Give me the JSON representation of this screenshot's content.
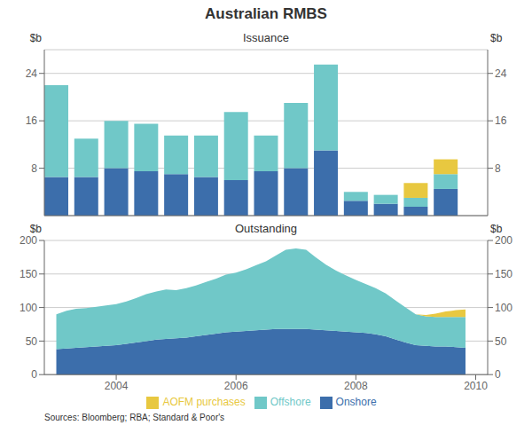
{
  "chart_data": [
    {
      "type": "bar",
      "title": "Australian RMBS",
      "subtitle": "Issuance",
      "stacked": true,
      "grid": true,
      "tick_labels": "y",
      "ylabel": "$b",
      "y2label": "$b",
      "x": [
        2003.0,
        2003.5,
        2004.0,
        2004.5,
        2005.0,
        2005.5,
        2006.0,
        2006.5,
        2007.0,
        2007.5,
        2008.0,
        2008.5,
        2009.0,
        2009.5
      ],
      "series": [
        {
          "name": "Onshore",
          "color": "#3C6EAB",
          "values": [
            6.5,
            6.5,
            8.0,
            7.5,
            7.0,
            6.5,
            6.0,
            7.5,
            8.0,
            11.0,
            2.5,
            2.0,
            1.5,
            4.5
          ]
        },
        {
          "name": "Offshore",
          "color": "#70C8C8",
          "values": [
            15.5,
            6.5,
            8.0,
            8.0,
            6.5,
            7.0,
            11.5,
            6.0,
            11.0,
            14.5,
            1.5,
            1.5,
            1.5,
            2.5
          ]
        },
        {
          "name": "AOFM purchases",
          "color": "#E8C840",
          "values": [
            0,
            0,
            0,
            0,
            0,
            0,
            0,
            0,
            0,
            0,
            0,
            0,
            2.5,
            2.5
          ]
        }
      ],
      "xlim": [
        2002.8,
        2010.2
      ],
      "ylim": [
        0,
        28
      ],
      "yticks": [
        8,
        16,
        24
      ],
      "y2lim": [
        0,
        28
      ],
      "y2ticks": [
        8,
        16,
        24
      ]
    },
    {
      "type": "area",
      "subtitle": "Outstanding",
      "stacked": true,
      "grid": true,
      "legend": "bottom",
      "ylabel": "$b",
      "y2label": "$b",
      "annotations": [
        "Sources: Bloomberg; RBA; Standard & Poor's"
      ],
      "x": [
        2003.0,
        2003.17,
        2003.33,
        2003.5,
        2003.67,
        2003.83,
        2004.0,
        2004.17,
        2004.33,
        2004.5,
        2004.67,
        2004.83,
        2005.0,
        2005.17,
        2005.33,
        2005.5,
        2005.67,
        2005.83,
        2006.0,
        2006.17,
        2006.33,
        2006.5,
        2006.67,
        2006.83,
        2007.0,
        2007.17,
        2007.33,
        2007.5,
        2007.67,
        2007.83,
        2008.0,
        2008.17,
        2008.33,
        2008.5,
        2008.67,
        2008.83,
        2009.0,
        2009.17,
        2009.33,
        2009.5,
        2009.67,
        2009.83
      ],
      "series": [
        {
          "name": "Onshore",
          "color": "#3C6EAB",
          "values": [
            38,
            39,
            40,
            41,
            42,
            43,
            44,
            46,
            48,
            50,
            52,
            53,
            54,
            55,
            57,
            59,
            61,
            63,
            64,
            65,
            66,
            67,
            68,
            68,
            68,
            68,
            67,
            66,
            65,
            64,
            63,
            62,
            60,
            57,
            52,
            48,
            44,
            43,
            42,
            42,
            41,
            40
          ]
        },
        {
          "name": "Offshore",
          "color": "#70C8C8",
          "values": [
            52,
            56,
            58,
            58,
            59,
            60,
            61,
            63,
            66,
            70,
            72,
            74,
            72,
            74,
            76,
            79,
            82,
            86,
            88,
            92,
            97,
            102,
            110,
            118,
            120,
            118,
            108,
            98,
            90,
            84,
            78,
            73,
            69,
            64,
            58,
            52,
            46,
            44,
            44,
            44,
            45,
            46
          ]
        },
        {
          "name": "AOFM purchases",
          "color": "#E8C840",
          "values": [
            0,
            0,
            0,
            0,
            0,
            0,
            0,
            0,
            0,
            0,
            0,
            0,
            0,
            0,
            0,
            0,
            0,
            0,
            0,
            0,
            0,
            0,
            0,
            0,
            0,
            0,
            0,
            0,
            0,
            0,
            0,
            0,
            0,
            0,
            0,
            0,
            0,
            2,
            5,
            8,
            10,
            11
          ]
        }
      ],
      "xlim": [
        2002.8,
        2010.2
      ],
      "xticks": [
        2004,
        2006,
        2008,
        2010
      ],
      "ylim": [
        0,
        200
      ],
      "yticks": [
        0,
        50,
        100,
        150,
        200
      ],
      "y2lim": [
        0,
        200
      ],
      "y2ticks": [
        0,
        50,
        100,
        150,
        200
      ]
    }
  ]
}
